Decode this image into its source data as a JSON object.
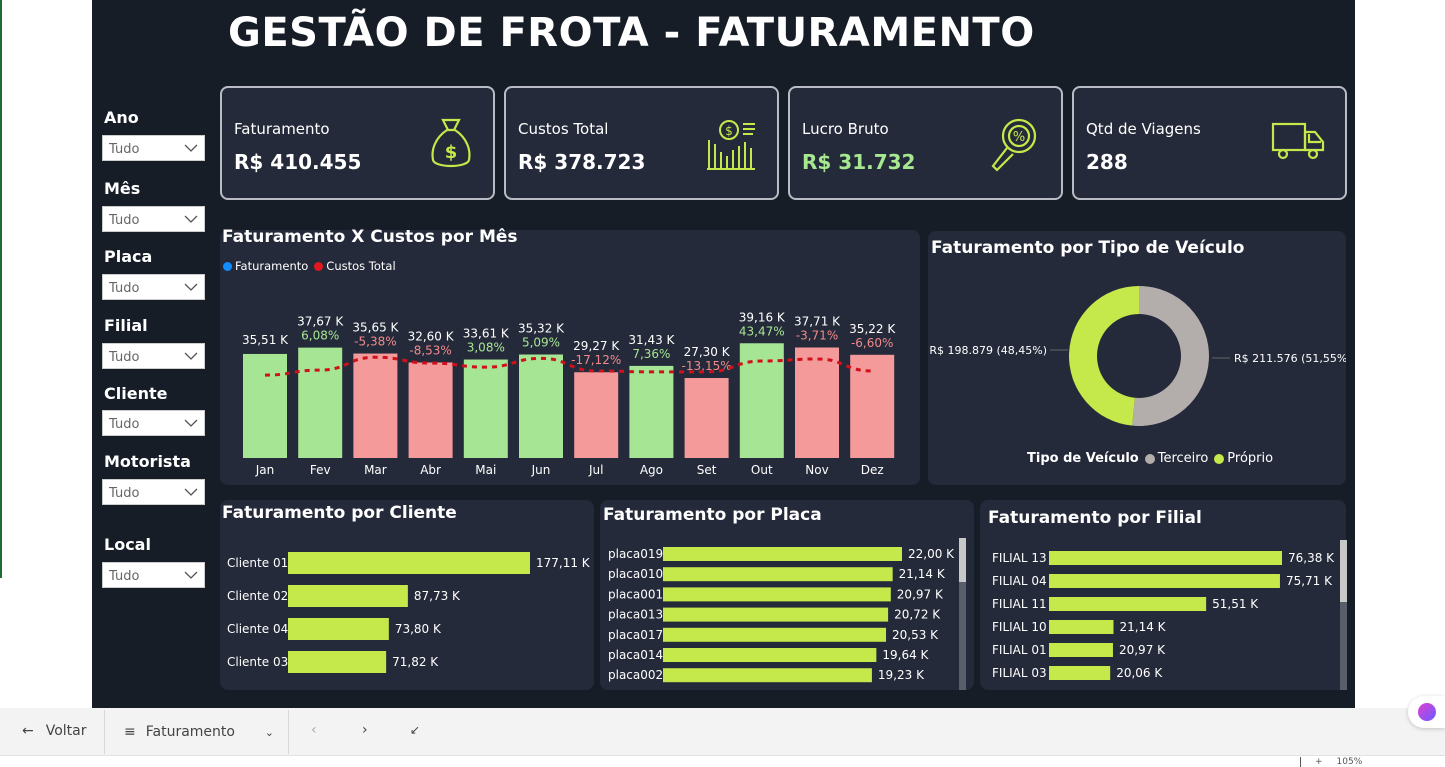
{
  "title": "GESTÃO DE FROTA - FATURAMENTO",
  "filters": [
    {
      "label": "Ano",
      "value": "Tudo"
    },
    {
      "label": "Mês",
      "value": "Tudo"
    },
    {
      "label": "Placa",
      "value": "Tudo"
    },
    {
      "label": "Filial",
      "value": "Tudo"
    },
    {
      "label": "Cliente",
      "value": "Tudo"
    },
    {
      "label": "Motorista",
      "value": "Tudo"
    },
    {
      "label": "Local",
      "value": "Tudo"
    }
  ],
  "kpis": [
    {
      "label": "Faturamento",
      "value": "R$ 410.455",
      "icon": "money-bag-icon"
    },
    {
      "label": "Custos Total",
      "value": "R$ 378.723",
      "icon": "cost-chart-icon"
    },
    {
      "label": "Lucro Bruto",
      "value": "R$ 31.732",
      "icon": "magnifier-percent-icon",
      "color": "#a6e88f"
    },
    {
      "label": "Qtd de Viagens",
      "value": "288",
      "icon": "truck-icon"
    }
  ],
  "chart_data": [
    {
      "type": "bar",
      "title": "Faturamento X Custos por Mês",
      "legend": [
        "Faturamento",
        "Custos Total"
      ],
      "legend_colors": [
        "#118dff",
        "#e0191f"
      ],
      "categories": [
        "Jan",
        "Fev",
        "Mar",
        "Abr",
        "Mai",
        "Jun",
        "Jul",
        "Ago",
        "Set",
        "Out",
        "Nov",
        "Dez"
      ],
      "series": [
        {
          "name": "Faturamento",
          "values": [
            35.51,
            37.67,
            35.65,
            32.6,
            33.61,
            35.32,
            29.27,
            31.43,
            27.3,
            39.16,
            37.71,
            35.22
          ],
          "labels": [
            "35,51 K",
            "37,67 K",
            "35,65 K",
            "32,60 K",
            "33,61 K",
            "35,32 K",
            "29,27 K",
            "31,43 K",
            "27,30 K",
            "39,16 K",
            "37,71 K",
            "35,22 K"
          ]
        },
        {
          "name": "Custos Total",
          "type": "line",
          "values": [
            28.3,
            30.0,
            34.4,
            32.4,
            31.0,
            34.0,
            29.7,
            29.4,
            29.4,
            33.1,
            33.8,
            29.7
          ]
        }
      ],
      "variation": [
        "",
        "6,08%",
        "-5,38%",
        "-8,53%",
        "3,08%",
        "5,09%",
        "-17,12%",
        "7,36%",
        "-13,15%",
        "43,47%",
        "-3,71%",
        "-6,60%"
      ],
      "colors": {
        "positive_bar": "#a6e594",
        "negative_bar": "#f59a9a",
        "positive_text": "#a6e594",
        "negative_text": "#f08a8a"
      }
    },
    {
      "type": "pie",
      "title": "Faturamento por Tipo de Veículo",
      "legend_title": "Tipo de Veículo",
      "categories": [
        "Terceiro",
        "Próprio"
      ],
      "values": [
        211576,
        198879
      ],
      "labels": [
        "R$ 211.576 (51,55%)",
        "R$ 198.879 (48,45%)"
      ],
      "colors": [
        "#b3aeab",
        "#c5e84a"
      ]
    },
    {
      "type": "bar",
      "orientation": "horizontal",
      "title": "Faturamento por Cliente",
      "categories": [
        "Cliente 01",
        "Cliente 02",
        "Cliente 04",
        "Cliente 03"
      ],
      "values": [
        177.11,
        87.73,
        73.8,
        71.82
      ],
      "labels": [
        "177,11 K",
        "87,73 K",
        "73,80 K",
        "71,82 K"
      ]
    },
    {
      "type": "bar",
      "orientation": "horizontal",
      "title": "Faturamento por Placa",
      "categories": [
        "placa019",
        "placa010",
        "placa001",
        "placa013",
        "placa017",
        "placa014",
        "placa002"
      ],
      "values": [
        22.0,
        21.14,
        20.97,
        20.72,
        20.53,
        19.64,
        19.23
      ],
      "labels": [
        "22,00 K",
        "21,14 K",
        "20,97 K",
        "20,72 K",
        "20,53 K",
        "19,64 K",
        "19,23 K"
      ]
    },
    {
      "type": "bar",
      "orientation": "horizontal",
      "title": "Faturamento por Filial",
      "categories": [
        "FILIAL 13",
        "FILIAL 04",
        "FILIAL 11",
        "FILIAL 10",
        "FILIAL 01",
        "FILIAL 03"
      ],
      "values": [
        76.38,
        75.71,
        51.51,
        21.14,
        20.97,
        20.06
      ],
      "labels": [
        "76,38 K",
        "75,71 K",
        "51,51 K",
        "21,14 K",
        "20,97 K",
        "20,06 K"
      ]
    }
  ],
  "bottom": {
    "back": "Voltar",
    "page": "Faturamento",
    "zoom": "105%"
  }
}
